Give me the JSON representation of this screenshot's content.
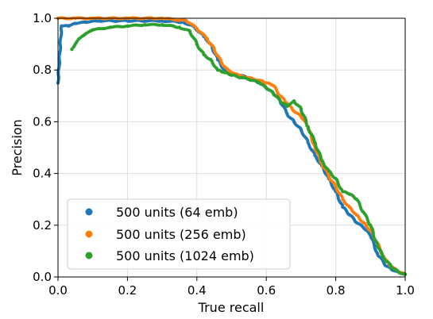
{
  "chart_data": {
    "type": "scatter",
    "title": "",
    "xlabel": "True recall",
    "ylabel": "Precision",
    "xlim": [
      0.0,
      1.0
    ],
    "ylim": [
      0.0,
      1.0
    ],
    "x_ticks": [
      "0.0",
      "0.2",
      "0.4",
      "0.6",
      "0.8",
      "1.0"
    ],
    "y_ticks": [
      "0.0",
      "0.2",
      "0.4",
      "0.6",
      "0.8",
      "1.0"
    ],
    "grid": true,
    "legend_position": "lower-left",
    "series": [
      {
        "name": "500 units (64 emb)",
        "color": "#1f77b4",
        "points": [
          [
            0.0,
            0.75
          ],
          [
            0.01,
            0.97
          ],
          [
            0.03,
            0.97
          ],
          [
            0.05,
            0.98
          ],
          [
            0.08,
            0.985
          ],
          [
            0.12,
            0.99
          ],
          [
            0.2,
            0.99
          ],
          [
            0.3,
            0.99
          ],
          [
            0.36,
            0.985
          ],
          [
            0.39,
            0.97
          ],
          [
            0.42,
            0.93
          ],
          [
            0.44,
            0.9
          ],
          [
            0.46,
            0.84
          ],
          [
            0.48,
            0.8
          ],
          [
            0.5,
            0.78
          ],
          [
            0.52,
            0.78
          ],
          [
            0.55,
            0.77
          ],
          [
            0.58,
            0.75
          ],
          [
            0.6,
            0.73
          ],
          [
            0.62,
            0.71
          ],
          [
            0.64,
            0.68
          ],
          [
            0.66,
            0.63
          ],
          [
            0.68,
            0.6
          ],
          [
            0.7,
            0.57
          ],
          [
            0.72,
            0.52
          ],
          [
            0.74,
            0.47
          ],
          [
            0.76,
            0.43
          ],
          [
            0.78,
            0.38
          ],
          [
            0.8,
            0.33
          ],
          [
            0.82,
            0.27
          ],
          [
            0.84,
            0.24
          ],
          [
            0.86,
            0.21
          ],
          [
            0.88,
            0.19
          ],
          [
            0.9,
            0.16
          ],
          [
            0.92,
            0.09
          ],
          [
            0.94,
            0.05
          ],
          [
            0.96,
            0.03
          ],
          [
            0.98,
            0.02
          ],
          [
            1.0,
            0.01
          ]
        ]
      },
      {
        "name": "500 units (256 emb)",
        "color": "#ff7f0e",
        "points": [
          [
            0.0,
            1.0
          ],
          [
            0.05,
            1.0
          ],
          [
            0.1,
            1.0
          ],
          [
            0.2,
            1.0
          ],
          [
            0.3,
            1.0
          ],
          [
            0.37,
            0.99
          ],
          [
            0.4,
            0.96
          ],
          [
            0.43,
            0.92
          ],
          [
            0.45,
            0.88
          ],
          [
            0.47,
            0.83
          ],
          [
            0.49,
            0.8
          ],
          [
            0.52,
            0.78
          ],
          [
            0.55,
            0.77
          ],
          [
            0.58,
            0.76
          ],
          [
            0.6,
            0.75
          ],
          [
            0.62,
            0.74
          ],
          [
            0.64,
            0.7
          ],
          [
            0.66,
            0.67
          ],
          [
            0.68,
            0.64
          ],
          [
            0.7,
            0.62
          ],
          [
            0.72,
            0.58
          ],
          [
            0.74,
            0.5
          ],
          [
            0.76,
            0.44
          ],
          [
            0.78,
            0.39
          ],
          [
            0.8,
            0.35
          ],
          [
            0.82,
            0.3
          ],
          [
            0.84,
            0.27
          ],
          [
            0.86,
            0.24
          ],
          [
            0.88,
            0.21
          ],
          [
            0.9,
            0.18
          ],
          [
            0.92,
            0.13
          ],
          [
            0.94,
            0.07
          ],
          [
            0.96,
            0.04
          ],
          [
            0.98,
            0.02
          ],
          [
            1.0,
            0.01
          ]
        ]
      },
      {
        "name": "500 units (1024 emb)",
        "color": "#2ca02c",
        "points": [
          [
            0.04,
            0.88
          ],
          [
            0.06,
            0.92
          ],
          [
            0.08,
            0.94
          ],
          [
            0.1,
            0.955
          ],
          [
            0.15,
            0.965
          ],
          [
            0.2,
            0.97
          ],
          [
            0.25,
            0.975
          ],
          [
            0.3,
            0.975
          ],
          [
            0.35,
            0.965
          ],
          [
            0.38,
            0.95
          ],
          [
            0.4,
            0.9
          ],
          [
            0.42,
            0.86
          ],
          [
            0.44,
            0.84
          ],
          [
            0.46,
            0.8
          ],
          [
            0.48,
            0.79
          ],
          [
            0.5,
            0.78
          ],
          [
            0.53,
            0.77
          ],
          [
            0.56,
            0.76
          ],
          [
            0.58,
            0.75
          ],
          [
            0.6,
            0.73
          ],
          [
            0.62,
            0.71
          ],
          [
            0.64,
            0.68
          ],
          [
            0.66,
            0.66
          ],
          [
            0.68,
            0.68
          ],
          [
            0.7,
            0.65
          ],
          [
            0.72,
            0.58
          ],
          [
            0.74,
            0.52
          ],
          [
            0.76,
            0.45
          ],
          [
            0.78,
            0.41
          ],
          [
            0.8,
            0.38
          ],
          [
            0.82,
            0.33
          ],
          [
            0.84,
            0.32
          ],
          [
            0.86,
            0.3
          ],
          [
            0.88,
            0.25
          ],
          [
            0.9,
            0.2
          ],
          [
            0.92,
            0.12
          ],
          [
            0.94,
            0.07
          ],
          [
            0.96,
            0.04
          ],
          [
            0.98,
            0.02
          ],
          [
            1.0,
            0.01
          ]
        ]
      }
    ]
  }
}
